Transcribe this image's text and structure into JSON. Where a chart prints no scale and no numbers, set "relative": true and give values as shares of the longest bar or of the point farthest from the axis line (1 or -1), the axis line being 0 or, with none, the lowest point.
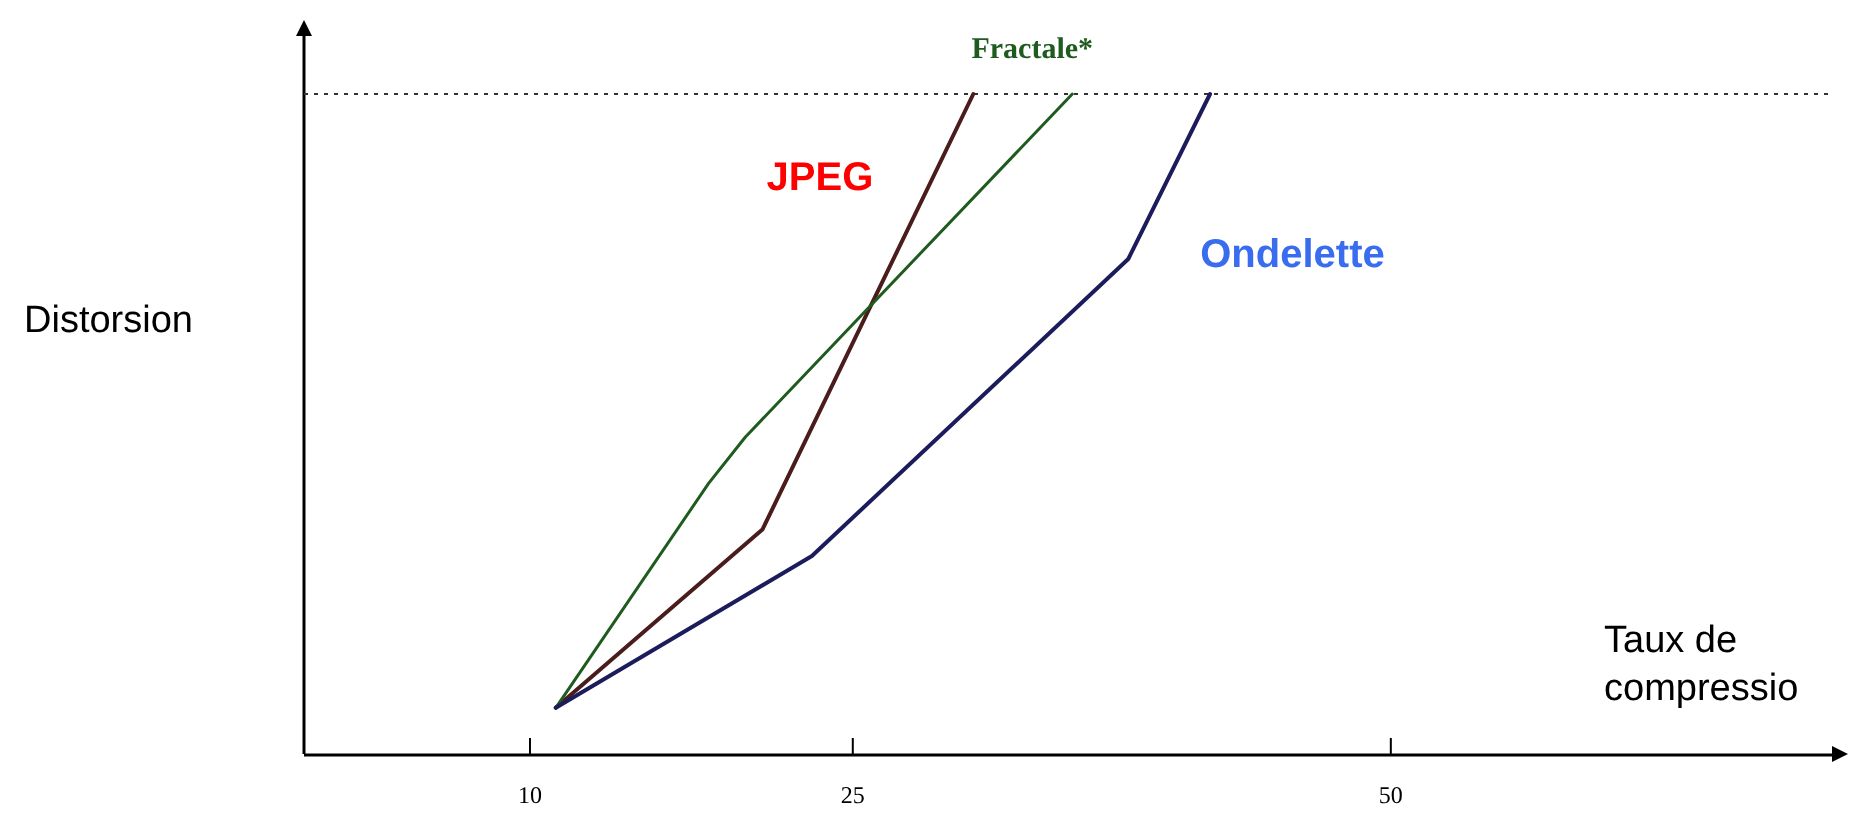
{
  "chart_data": {
    "type": "line",
    "relative": true,
    "xlabel": "Taux de compressio",
    "ylabel": "Distorsion",
    "xlim": [
      -0.5,
      70.5
    ],
    "xticks": [
      10,
      25,
      50
    ],
    "grid": false,
    "legend": false,
    "marker": "none",
    "line_style": "solid",
    "ref_lines": [
      {
        "axis": "y",
        "value": 1,
        "color": "#333333",
        "line_style": "dotted"
      }
    ],
    "series": [
      {
        "name": "JPEG",
        "color": "#4a1c1c",
        "x": [
          11.2,
          20.8,
          30.6
        ],
        "values": [
          0.07,
          0.34,
          1
        ]
      },
      {
        "name": "Fractale*",
        "color": "#1f5a1f",
        "x": [
          11.2,
          18.3,
          20.0,
          35.2
        ],
        "values": [
          0.07,
          0.41,
          0.48,
          1
        ]
      },
      {
        "name": "Ondelette",
        "color": "#1c1c5c",
        "x": [
          11.2,
          23.1,
          37.8,
          41.6
        ],
        "values": [
          0.07,
          0.3,
          0.75,
          1
        ]
      }
    ]
  }
}
